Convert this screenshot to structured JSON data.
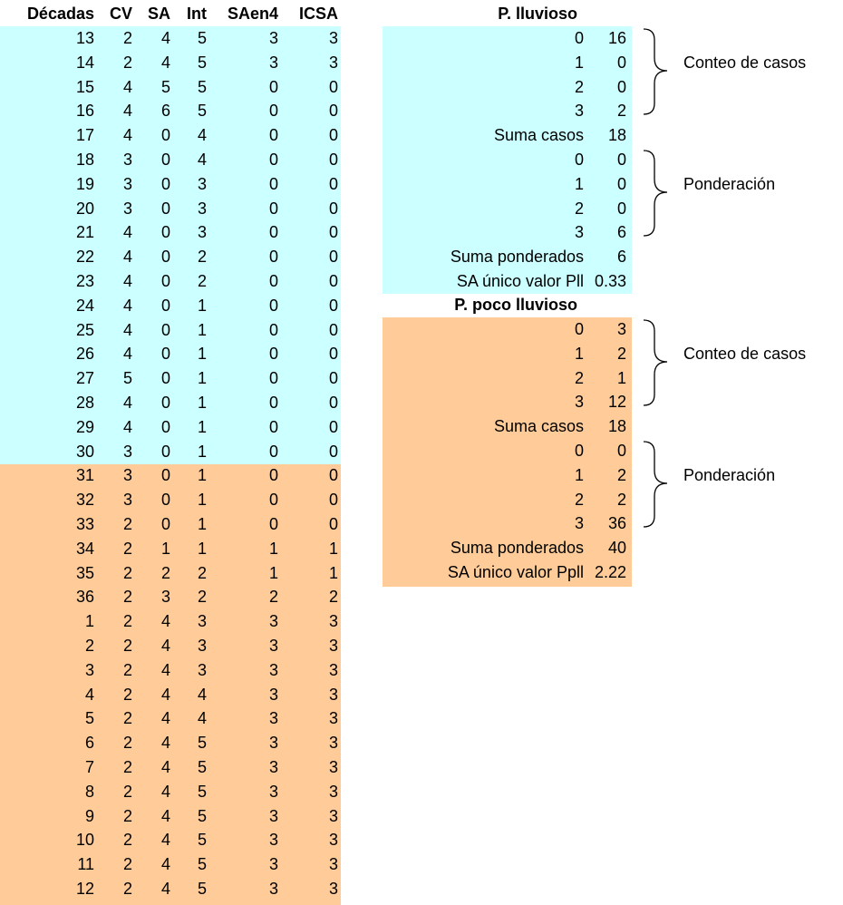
{
  "left_table": {
    "headers": [
      "Décadas",
      "CV",
      "SA",
      "Int",
      "SAen4",
      "ICSA"
    ],
    "rows": [
      [
        "13",
        "2",
        "4",
        "5",
        "3",
        "3"
      ],
      [
        "14",
        "2",
        "4",
        "5",
        "3",
        "3"
      ],
      [
        "15",
        "4",
        "5",
        "5",
        "0",
        "0"
      ],
      [
        "16",
        "4",
        "6",
        "5",
        "0",
        "0"
      ],
      [
        "17",
        "4",
        "0",
        "4",
        "0",
        "0"
      ],
      [
        "18",
        "3",
        "0",
        "4",
        "0",
        "0"
      ],
      [
        "19",
        "3",
        "0",
        "3",
        "0",
        "0"
      ],
      [
        "20",
        "3",
        "0",
        "3",
        "0",
        "0"
      ],
      [
        "21",
        "4",
        "0",
        "3",
        "0",
        "0"
      ],
      [
        "22",
        "4",
        "0",
        "2",
        "0",
        "0"
      ],
      [
        "23",
        "4",
        "0",
        "2",
        "0",
        "0"
      ],
      [
        "24",
        "4",
        "0",
        "1",
        "0",
        "0"
      ],
      [
        "25",
        "4",
        "0",
        "1",
        "0",
        "0"
      ],
      [
        "26",
        "4",
        "0",
        "1",
        "0",
        "0"
      ],
      [
        "27",
        "5",
        "0",
        "1",
        "0",
        "0"
      ],
      [
        "28",
        "4",
        "0",
        "1",
        "0",
        "0"
      ],
      [
        "29",
        "4",
        "0",
        "1",
        "0",
        "0"
      ],
      [
        "30",
        "3",
        "0",
        "1",
        "0",
        "0"
      ],
      [
        "31",
        "3",
        "0",
        "1",
        "0",
        "0"
      ],
      [
        "32",
        "3",
        "0",
        "1",
        "0",
        "0"
      ],
      [
        "33",
        "2",
        "0",
        "1",
        "0",
        "0"
      ],
      [
        "34",
        "2",
        "1",
        "1",
        "1",
        "1"
      ],
      [
        "35",
        "2",
        "2",
        "2",
        "1",
        "1"
      ],
      [
        "36",
        "2",
        "3",
        "2",
        "2",
        "2"
      ],
      [
        "1",
        "2",
        "4",
        "3",
        "3",
        "3"
      ],
      [
        "2",
        "2",
        "4",
        "3",
        "3",
        "3"
      ],
      [
        "3",
        "2",
        "4",
        "3",
        "3",
        "3"
      ],
      [
        "4",
        "2",
        "4",
        "4",
        "3",
        "3"
      ],
      [
        "5",
        "2",
        "4",
        "4",
        "3",
        "3"
      ],
      [
        "6",
        "2",
        "4",
        "5",
        "3",
        "3"
      ],
      [
        "7",
        "2",
        "4",
        "5",
        "3",
        "3"
      ],
      [
        "8",
        "2",
        "4",
        "5",
        "3",
        "3"
      ],
      [
        "9",
        "2",
        "4",
        "5",
        "3",
        "3"
      ],
      [
        "10",
        "2",
        "4",
        "5",
        "3",
        "3"
      ],
      [
        "11",
        "2",
        "4",
        "5",
        "3",
        "3"
      ],
      [
        "12",
        "2",
        "4",
        "5",
        "3",
        "3"
      ]
    ]
  },
  "lluvioso": {
    "title": "P. lluvioso",
    "rows": [
      [
        "0",
        "16"
      ],
      [
        "1",
        "0"
      ],
      [
        "2",
        "0"
      ],
      [
        "3",
        "2"
      ],
      [
        "Suma casos",
        "18"
      ],
      [
        "0",
        "0"
      ],
      [
        "1",
        "0"
      ],
      [
        "2",
        "0"
      ],
      [
        "3",
        "6"
      ],
      [
        "Suma ponderados",
        "6"
      ],
      [
        "SA único valor Pll",
        "0.33"
      ]
    ],
    "brace_conteo": "Conteo de casos",
    "brace_ponderacion": "Ponderación"
  },
  "poco_lluvioso": {
    "title": "P. poco lluvioso",
    "rows": [
      [
        "0",
        "3"
      ],
      [
        "1",
        "2"
      ],
      [
        "2",
        "1"
      ],
      [
        "3",
        "12"
      ],
      [
        "Suma casos",
        "18"
      ],
      [
        "0",
        "0"
      ],
      [
        "1",
        "2"
      ],
      [
        "2",
        "2"
      ],
      [
        "3",
        "36"
      ],
      [
        "Suma ponderados",
        "40"
      ],
      [
        "SA único valor Ppll",
        "2.22"
      ]
    ],
    "brace_conteo": "Conteo de casos",
    "brace_ponderacion": "Ponderación"
  },
  "colors": {
    "rainy_period": "#ccffff",
    "dry_period": "#ffcc99"
  }
}
